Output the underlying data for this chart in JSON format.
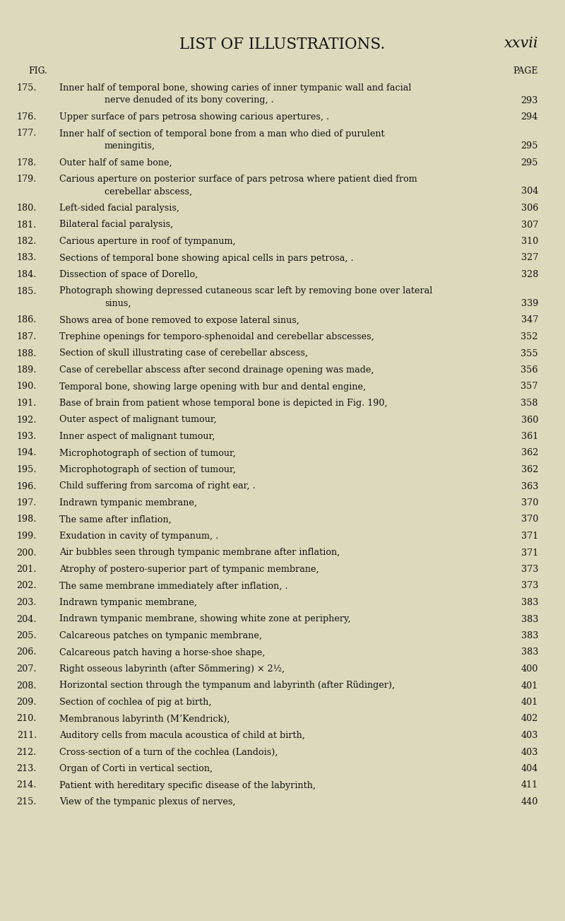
{
  "title": "LIST OF ILLUSTRATIONS.",
  "page_label": "xxvii",
  "fig_label": "FIG.",
  "page_col_label": "PAGE",
  "background_color": "#ddd9bc",
  "text_color": "#111111",
  "entries": [
    {
      "fig": "175.",
      "text1": "Inner half of temporal bone, showing caries of inner tympanic wall and facial",
      "text2": "nerve denuded of its bony covering, .",
      "page": "293",
      "wrap": true
    },
    {
      "fig": "176.",
      "text1": "Upper surface of pars petrosa showing carious apertures, .",
      "text2": "",
      "page": "294",
      "wrap": false
    },
    {
      "fig": "177.",
      "text1": "Inner half of section of temporal bone from a man who died of purulent",
      "text2": "meningitis,",
      "page": "295",
      "wrap": true
    },
    {
      "fig": "178.",
      "text1": "Outer half of same bone,",
      "text2": "",
      "page": "295",
      "wrap": false
    },
    {
      "fig": "179.",
      "text1": "Carious aperture on posterior surface of pars petrosa where patient died from",
      "text2": "cerebellar abscess,",
      "page": "304",
      "wrap": true
    },
    {
      "fig": "180.",
      "text1": "Left-sided facial paralysis,",
      "text2": "",
      "page": "306",
      "wrap": false
    },
    {
      "fig": "181.",
      "text1": "Bilateral facial paralysis,",
      "text2": "",
      "page": "307",
      "wrap": false
    },
    {
      "fig": "182.",
      "text1": "Carious aperture in roof of tympanum,",
      "text2": "",
      "page": "310",
      "wrap": false
    },
    {
      "fig": "183.",
      "text1": "Sections of temporal bone showing apical cells in pars petrosa, .",
      "text2": "",
      "page": "327",
      "wrap": false
    },
    {
      "fig": "184.",
      "text1": "Dissection of space of Dorello,",
      "text2": "",
      "page": "328",
      "wrap": false
    },
    {
      "fig": "185.",
      "text1": "Photograph showing depressed cutaneous scar left by removing bone over lateral",
      "text2": "sinus,",
      "page": "339",
      "wrap": true
    },
    {
      "fig": "186.",
      "text1": "Shows area of bone removed to expose lateral sinus,",
      "text2": "",
      "page": "347",
      "wrap": false
    },
    {
      "fig": "187.",
      "text1": "Trephine openings for temporo-sphenoidal and cerebellar abscesses,",
      "text2": "",
      "page": "352",
      "wrap": false
    },
    {
      "fig": "188.",
      "text1": "Section of skull illustrating case of cerebellar abscess,",
      "text2": "",
      "page": "355",
      "wrap": false
    },
    {
      "fig": "189.",
      "text1": "Case of cerebellar abscess after second drainage opening was made,",
      "text2": "",
      "page": "356",
      "wrap": false
    },
    {
      "fig": "190.",
      "text1": "Temporal bone, showing large opening with bur and dental engine,",
      "text2": "",
      "page": "357",
      "wrap": false
    },
    {
      "fig": "191.",
      "text1": "Base of brain from patient whose temporal bone is depicted in Fig. 190,",
      "text2": "",
      "page": "358",
      "wrap": false
    },
    {
      "fig": "192.",
      "text1": "Outer aspect of malignant tumour,",
      "text2": "",
      "page": "360",
      "wrap": false
    },
    {
      "fig": "193.",
      "text1": "Inner aspect of malignant tumour,",
      "text2": "",
      "page": "361",
      "wrap": false
    },
    {
      "fig": "194.",
      "text1": "Microphotograph of section of tumour,",
      "text2": "",
      "page": "362",
      "wrap": false
    },
    {
      "fig": "195.",
      "text1": "Microphotograph of section of tumour,",
      "text2": "",
      "page": "362",
      "wrap": false
    },
    {
      "fig": "196.",
      "text1": "Child suffering from sarcoma of right ear, .",
      "text2": "",
      "page": "363",
      "wrap": false
    },
    {
      "fig": "197.",
      "text1": "Indrawn tympanic membrane,",
      "text2": "",
      "page": "370",
      "wrap": false
    },
    {
      "fig": "198.",
      "text1": "The same after inflation,",
      "text2": "",
      "page": "370",
      "wrap": false
    },
    {
      "fig": "199.",
      "text1": "Exudation in cavity of tympanum, .",
      "text2": "",
      "page": "371",
      "wrap": false
    },
    {
      "fig": "200.",
      "text1": "Air bubbles seen through tympanic membrane after inflation,",
      "text2": "",
      "page": "371",
      "wrap": false
    },
    {
      "fig": "201.",
      "text1": "Atrophy of postero-superior part of tympanic membrane,",
      "text2": "",
      "page": "373",
      "wrap": false
    },
    {
      "fig": "202.",
      "text1": "The same membrane immediately after inflation, .",
      "text2": "",
      "page": "373",
      "wrap": false
    },
    {
      "fig": "203.",
      "text1": "Indrawn tympanic membrane,",
      "text2": "",
      "page": "383",
      "wrap": false
    },
    {
      "fig": "204.",
      "text1": "Indrawn tympanic membrane, showing white zone at periphery,",
      "text2": "",
      "page": "383",
      "wrap": false
    },
    {
      "fig": "205.",
      "text1": "Calcareous patches on tympanic membrane,",
      "text2": "",
      "page": "383",
      "wrap": false
    },
    {
      "fig": "206.",
      "text1": "Calcareous patch having a horse-shoe shape,",
      "text2": "",
      "page": "383",
      "wrap": false
    },
    {
      "fig": "207.",
      "text1": "Right osseous labyrinth (after Sömmering) × 2½,",
      "text2": "",
      "page": "400",
      "wrap": false
    },
    {
      "fig": "208.",
      "text1": "Horizontal section through the tympanum and labyrinth (after Rüdinger),",
      "text2": "",
      "page": "401",
      "wrap": false
    },
    {
      "fig": "209.",
      "text1": "Section of cochlea of pig at birth,",
      "text2": "",
      "page": "401",
      "wrap": false
    },
    {
      "fig": "210.",
      "text1": "Membranous labyrinth (M’Kendrick),",
      "text2": "",
      "page": "402",
      "wrap": false
    },
    {
      "fig": "211.",
      "text1": "Auditory cells from macula acoustica of child at birth,",
      "text2": "",
      "page": "403",
      "wrap": false
    },
    {
      "fig": "212.",
      "text1": "Cross-section of a turn of the cochlea (Landois),",
      "text2": "",
      "page": "403",
      "wrap": false
    },
    {
      "fig": "213.",
      "text1": "Organ of Corti in vertical section,",
      "text2": "",
      "page": "404",
      "wrap": false
    },
    {
      "fig": "214.",
      "text1": "Patient with hereditary specific disease of the labyrinth,",
      "text2": "",
      "page": "411",
      "wrap": false
    },
    {
      "fig": "215.",
      "text1": "View of the tympanic plexus of nerves,",
      "text2": "",
      "page": "440",
      "wrap": false
    }
  ]
}
